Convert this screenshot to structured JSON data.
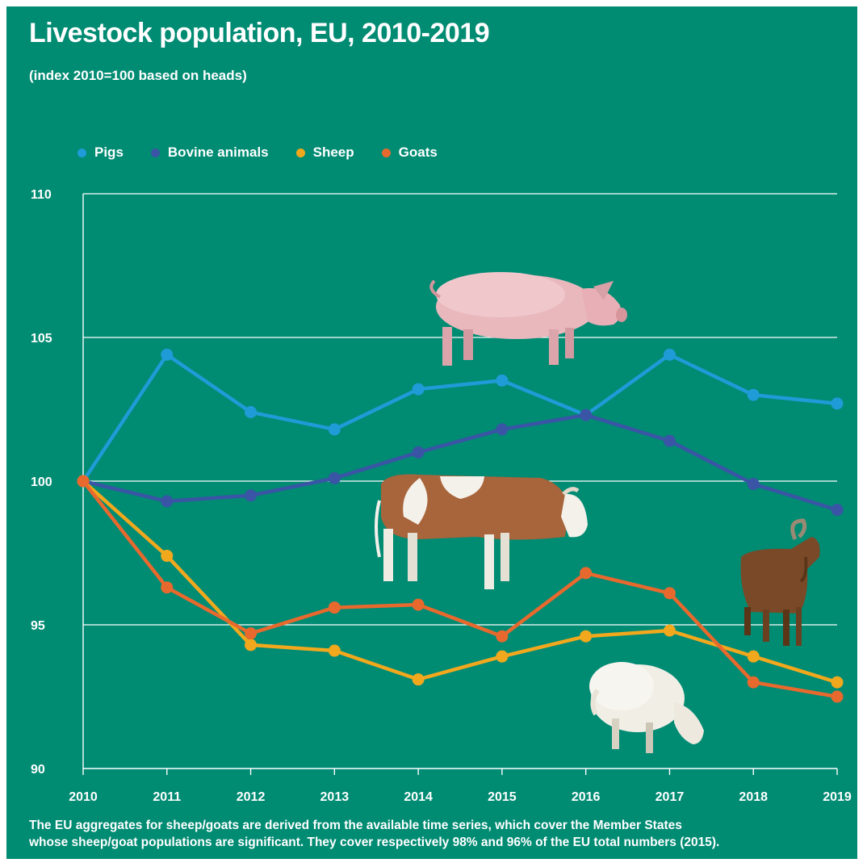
{
  "header": {
    "title": "Livestock population, EU, 2010-2019",
    "subtitle": "(index 2010=100 based on heads)"
  },
  "legend": [
    {
      "label": "Pigs",
      "color": "#1f9bd7"
    },
    {
      "label": "Bovine animals",
      "color": "#3a55a5"
    },
    {
      "label": "Sheep",
      "color": "#f2a81d"
    },
    {
      "label": "Goats",
      "color": "#e8692d"
    }
  ],
  "footnote": {
    "line1": "The EU aggregates for sheep/goats are derived from the available time series, which cover the Member States",
    "line2": "whose sheep/goat populations are significant. They cover respectively 98% and 96% of the EU total numbers (2015)."
  },
  "illustrations": [
    "pig-illustration",
    "cow-illustration",
    "goat-illustration",
    "sheep-illustration"
  ],
  "chart_data": {
    "type": "line",
    "title": "Livestock population, EU, 2010-2019",
    "subtitle": "(index 2010=100 based on heads)",
    "x": [
      "2010",
      "2011",
      "2012",
      "2013",
      "2014",
      "2015",
      "2016",
      "2017",
      "2018",
      "2019"
    ],
    "ylim": [
      90,
      110
    ],
    "yticks": [
      "90",
      "95",
      "100",
      "105",
      "110"
    ],
    "grid": true,
    "legend_position": "top-left",
    "series": [
      {
        "name": "Pigs",
        "color": "#1f9bd7",
        "values": [
          100,
          104.4,
          102.4,
          101.8,
          103.2,
          103.5,
          102.3,
          104.4,
          103.0,
          102.7
        ]
      },
      {
        "name": "Bovine animals",
        "color": "#3a55a5",
        "values": [
          100,
          99.3,
          99.5,
          100.1,
          101.0,
          101.8,
          102.3,
          101.4,
          99.9,
          99.0
        ]
      },
      {
        "name": "Sheep",
        "color": "#f2a81d",
        "values": [
          100,
          97.4,
          94.3,
          94.1,
          93.1,
          93.9,
          94.6,
          94.8,
          93.9,
          93.0
        ]
      },
      {
        "name": "Goats",
        "color": "#e8692d",
        "values": [
          100,
          96.3,
          94.7,
          95.6,
          95.7,
          94.6,
          96.8,
          96.1,
          93.0,
          92.5
        ]
      }
    ]
  }
}
